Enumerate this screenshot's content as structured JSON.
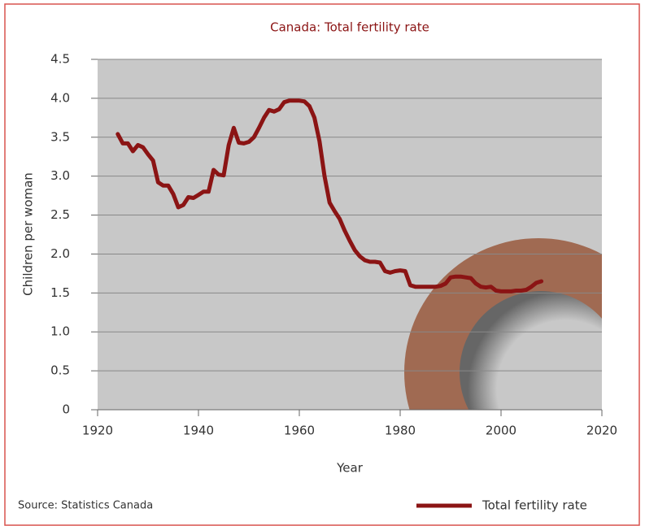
{
  "chart_data": {
    "type": "line",
    "title": "Canada: Total fertility rate",
    "x_label": "Year",
    "y_label": "Children per woman",
    "source": "Source: Statistics Canada",
    "xlim": [
      1920,
      2020
    ],
    "xticks": [
      1920,
      1940,
      1960,
      1980,
      2000,
      2020
    ],
    "ylim": [
      0,
      4.5
    ],
    "yticks": [
      0,
      0.5,
      {
        "value": 1,
        "label": "1.0"
      },
      1.5,
      {
        "value": 2,
        "label": "2.0"
      },
      2.5,
      {
        "value": 3,
        "label": "3.0"
      },
      3.5,
      {
        "value": 4,
        "label": "4.0"
      },
      4.5
    ],
    "grid": true,
    "legend": "bottom-right",
    "x": [
      1924,
      1925,
      1926,
      1927,
      1928,
      1929,
      1930,
      1931,
      1932,
      1933,
      1934,
      1935,
      1936,
      1937,
      1938,
      1939,
      1940,
      1941,
      1942,
      1943,
      1944,
      1945,
      1946,
      1947,
      1948,
      1949,
      1950,
      1951,
      1952,
      1953,
      1954,
      1955,
      1956,
      1957,
      1958,
      1959,
      1960,
      1961,
      1962,
      1963,
      1964,
      1965,
      1966,
      1967,
      1968,
      1969,
      1970,
      1971,
      1972,
      1973,
      1974,
      1975,
      1976,
      1977,
      1978,
      1979,
      1980,
      1981,
      1982,
      1983,
      1984,
      1985,
      1986,
      1987,
      1988,
      1989,
      1990,
      1991,
      1992,
      1993,
      1994,
      1995,
      1996,
      1997,
      1998,
      1999,
      2000,
      2001,
      2002,
      2003,
      2004,
      2005,
      2006,
      2007,
      2008
    ],
    "series": [
      {
        "name": "Total fertility rate",
        "color": "#8b1414",
        "values": [
          3.54,
          3.42,
          3.42,
          3.32,
          3.4,
          3.37,
          3.28,
          3.2,
          2.92,
          2.88,
          2.88,
          2.77,
          2.6,
          2.63,
          2.73,
          2.72,
          2.76,
          2.8,
          2.8,
          3.08,
          3.02,
          3.01,
          3.4,
          3.62,
          3.43,
          3.42,
          3.44,
          3.5,
          3.62,
          3.75,
          3.85,
          3.83,
          3.86,
          3.95,
          3.97,
          3.97,
          3.97,
          3.96,
          3.9,
          3.75,
          3.45,
          3.0,
          2.66,
          2.55,
          2.45,
          2.3,
          2.17,
          2.05,
          1.97,
          1.92,
          1.9,
          1.9,
          1.89,
          1.78,
          1.76,
          1.78,
          1.79,
          1.78,
          1.6,
          1.58,
          1.58,
          1.58,
          1.58,
          1.58,
          1.59,
          1.62,
          1.7,
          1.71,
          1.71,
          1.7,
          1.69,
          1.62,
          1.58,
          1.57,
          1.58,
          1.53,
          1.52,
          1.52,
          1.52,
          1.53,
          1.53,
          1.54,
          1.58,
          1.63,
          1.65
        ]
      }
    ]
  }
}
